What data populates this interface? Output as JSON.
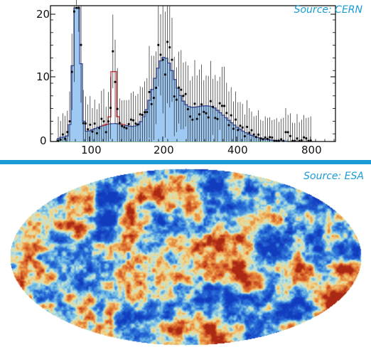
{
  "histogram": {
    "tick_labels_x": [
      "100",
      "200",
      "400",
      "800"
    ],
    "tick_labels_y": [
      "20",
      "10",
      "0"
    ]
  },
  "sources": {
    "cern": "Source: CERN",
    "esa": "Source: ESA"
  },
  "colors": {
    "accent": "#1a9bd6",
    "blue_fill": "#9ec9f2",
    "blue_line": "#3f4fa8",
    "red_peak": "#d94040",
    "green_bg": "#3f8f3f",
    "cmb_blue": "#1a56c8",
    "cmb_cyan": "#7cc7e4",
    "cmb_yellow": "#f2d07a",
    "cmb_orange": "#e88a3c",
    "cmb_red": "#c8401c"
  }
}
